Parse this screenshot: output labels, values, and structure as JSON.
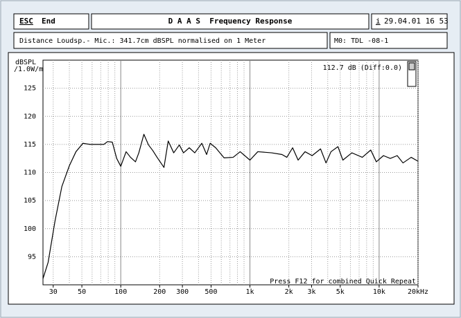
{
  "header": {
    "esc": "ESC",
    "end": "End",
    "title": "D A A S  Frequency Response",
    "info": "i",
    "datetime": "29.04.01 16 53"
  },
  "subheader": {
    "distance": "Distance Loudsp.- Mic.: 341.7cm dBSPL normalised on 1 Meter",
    "model": "M0: TDL -08-1"
  },
  "chart_data": {
    "type": "line",
    "xscale": "log",
    "grid": true,
    "y_label": [
      "dBSPL",
      "/1.0W/m"
    ],
    "annotation": "112.7 dB (Diff:0.0)",
    "footer_note": "Press F12 for combined Quick Repeat",
    "xlim": [
      25,
      20000
    ],
    "ylim": [
      90,
      130
    ],
    "xticks": [
      30,
      50,
      100,
      200,
      300,
      500,
      {
        "value": 1000,
        "label": "1k"
      },
      {
        "value": 2000,
        "label": "2k"
      },
      {
        "value": 3000,
        "label": "3k"
      },
      {
        "value": 5000,
        "label": "5k"
      },
      {
        "value": 10000,
        "label": "10k"
      },
      {
        "value": 20000,
        "label": "20kHz"
      }
    ],
    "xgrid": [
      30,
      40,
      50,
      60,
      70,
      80,
      90,
      100,
      200,
      300,
      400,
      500,
      600,
      700,
      800,
      900,
      1000,
      2000,
      3000,
      4000,
      5000,
      6000,
      7000,
      8000,
      9000,
      10000,
      20000
    ],
    "yticks": [
      95,
      100,
      105,
      110,
      115,
      120,
      125
    ],
    "x": [
      25,
      27.4,
      31,
      35,
      40,
      45,
      51,
      58,
      74,
      79,
      86,
      93,
      100,
      110,
      119,
      130,
      138,
      151,
      164,
      177,
      191,
      216,
      233,
      257,
      284,
      306,
      339,
      374,
      424,
      462,
      492,
      543,
      631,
      741,
      840,
      1000,
      1150,
      1470,
      1770,
      1930,
      2140,
      2360,
      2670,
      3030,
      3520,
      3880,
      4240,
      4800,
      5240,
      6150,
      7410,
      8610,
      9510,
      10800,
      12200,
      13800,
      15300,
      17700,
      20000
    ],
    "series": [
      {
        "color": "#000000",
        "values": [
          91.1,
          94.0,
          101.4,
          107.5,
          111.2,
          113.7,
          115.2,
          115.0,
          115.0,
          115.5,
          115.4,
          112.5,
          111.1,
          113.7,
          112.7,
          111.9,
          113.5,
          116.8,
          114.9,
          113.9,
          112.7,
          110.9,
          115.6,
          113.5,
          114.9,
          113.5,
          114.4,
          113.5,
          115.2,
          113.2,
          115.2,
          114.4,
          112.6,
          112.7,
          113.7,
          112.2,
          113.7,
          113.5,
          113.2,
          112.7,
          114.4,
          112.2,
          113.7,
          113.0,
          114.2,
          111.7,
          113.7,
          114.6,
          112.2,
          113.5,
          112.7,
          114.0,
          111.9,
          113.0,
          112.5,
          113.0,
          111.7,
          112.7,
          112.0
        ]
      }
    ]
  }
}
